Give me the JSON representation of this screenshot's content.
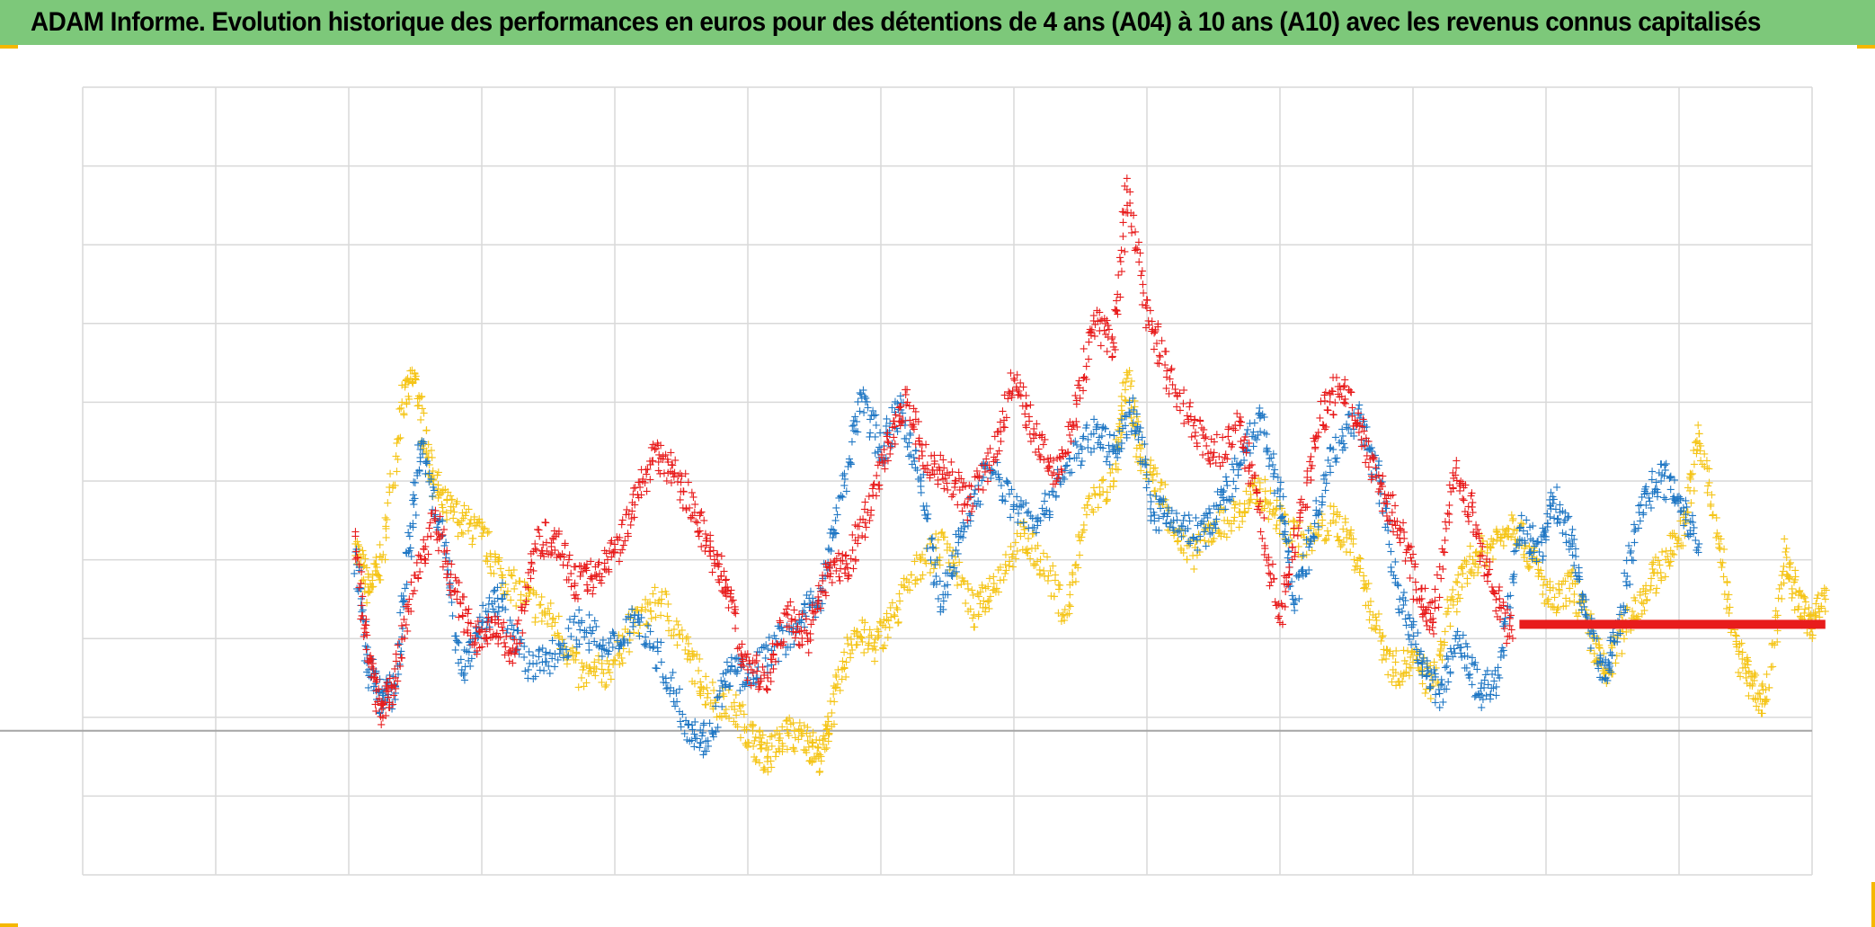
{
  "title": "ADAM Informe. Evolution historique des performances en euros pour des détentions de 4 ans (A04) à 10 ans (A10) avec les revenus connus capitalisés",
  "colors": {
    "title_bg": "#7dc87a",
    "grid": "#d9d9d9",
    "baseline": "#a6a6a6",
    "corner_marks": "#f5b800"
  },
  "chart_data": {
    "type": "scatter",
    "marker": "plus",
    "grid": true,
    "x_divisions": 13,
    "y_divisions": 10,
    "xlim": [
      0,
      13
    ],
    "ylim": [
      -2,
      8
    ],
    "baseline_y": 0,
    "series": [
      {
        "color": "#f5c518",
        "points": [
          [
            2.05,
            2.2
          ],
          [
            2.15,
            1.6
          ],
          [
            2.25,
            2.0
          ],
          [
            2.4,
            4.0
          ],
          [
            2.5,
            4.3
          ],
          [
            2.6,
            3.3
          ],
          [
            2.7,
            2.7
          ],
          [
            2.85,
            2.5
          ],
          [
            3.0,
            2.3
          ],
          [
            3.15,
            1.8
          ],
          [
            3.35,
            1.5
          ],
          [
            3.55,
            1.2
          ],
          [
            3.75,
            0.5
          ],
          [
            3.95,
            0.6
          ],
          [
            4.15,
            1.2
          ],
          [
            4.35,
            1.5
          ],
          [
            4.55,
            0.8
          ],
          [
            4.7,
            0.3
          ],
          [
            4.9,
            0.1
          ],
          [
            5.05,
            -0.3
          ],
          [
            5.15,
            -0.5
          ],
          [
            5.3,
            -0.2
          ],
          [
            5.45,
            -0.3
          ],
          [
            5.55,
            -0.5
          ],
          [
            5.65,
            0.2
          ],
          [
            5.8,
            1.1
          ],
          [
            5.95,
            0.9
          ],
          [
            6.1,
            1.3
          ],
          [
            6.3,
            2.0
          ],
          [
            6.5,
            2.2
          ],
          [
            6.7,
            1.3
          ],
          [
            6.85,
            1.7
          ],
          [
            7.05,
            2.3
          ],
          [
            7.2,
            2.0
          ],
          [
            7.4,
            1.3
          ],
          [
            7.55,
            2.7
          ],
          [
            7.75,
            3.0
          ],
          [
            7.85,
            4.3
          ],
          [
            7.95,
            3.3
          ],
          [
            8.1,
            2.9
          ],
          [
            8.3,
            2.0
          ],
          [
            8.5,
            2.4
          ],
          [
            8.7,
            2.6
          ],
          [
            8.85,
            2.9
          ],
          [
            9.0,
            2.5
          ],
          [
            9.2,
            2.2
          ],
          [
            9.4,
            2.5
          ],
          [
            9.55,
            2.2
          ],
          [
            9.7,
            1.3
          ],
          [
            9.85,
            0.6
          ],
          [
            10.0,
            0.7
          ],
          [
            10.15,
            0.4
          ],
          [
            10.3,
            1.5
          ],
          [
            10.45,
            2.0
          ],
          [
            10.6,
            2.2
          ],
          [
            10.75,
            2.5
          ],
          [
            10.9,
            2.0
          ],
          [
            11.05,
            1.4
          ],
          [
            11.2,
            1.7
          ],
          [
            11.35,
            1.0
          ],
          [
            11.45,
            0.5
          ],
          [
            11.6,
            1.2
          ],
          [
            11.75,
            1.6
          ],
          [
            11.9,
            2.0
          ],
          [
            12.05,
            2.5
          ],
          [
            12.15,
            3.6
          ],
          [
            12.3,
            2.2
          ],
          [
            12.45,
            0.8
          ],
          [
            12.55,
            0.4
          ],
          [
            12.65,
            0.2
          ],
          [
            12.8,
            2.1
          ],
          [
            12.9,
            1.4
          ],
          [
            13.0,
            1.2
          ],
          [
            13.1,
            1.5
          ]
        ]
      },
      {
        "color": "#1f77c4",
        "points": [
          [
            2.05,
            2.1
          ],
          [
            2.15,
            0.6
          ],
          [
            2.25,
            0.2
          ],
          [
            2.35,
            0.4
          ],
          [
            2.45,
            2.1
          ],
          [
            2.55,
            3.5
          ],
          [
            2.7,
            2.3
          ],
          [
            2.85,
            0.6
          ],
          [
            3.0,
            1.2
          ],
          [
            3.15,
            1.5
          ],
          [
            3.35,
            0.6
          ],
          [
            3.55,
            0.8
          ],
          [
            3.75,
            1.2
          ],
          [
            3.95,
            0.8
          ],
          [
            4.15,
            1.3
          ],
          [
            4.35,
            0.7
          ],
          [
            4.55,
            -0.1
          ],
          [
            4.7,
            -0.3
          ],
          [
            4.85,
            0.6
          ],
          [
            5.0,
            0.5
          ],
          [
            5.2,
            0.9
          ],
          [
            5.4,
            1.2
          ],
          [
            5.55,
            1.6
          ],
          [
            5.7,
            2.8
          ],
          [
            5.85,
            4.1
          ],
          [
            6.0,
            3.4
          ],
          [
            6.15,
            3.9
          ],
          [
            6.3,
            3.0
          ],
          [
            6.45,
            1.4
          ],
          [
            6.6,
            2.3
          ],
          [
            6.8,
            3.2
          ],
          [
            7.0,
            2.7
          ],
          [
            7.2,
            2.5
          ],
          [
            7.4,
            3.2
          ],
          [
            7.6,
            3.6
          ],
          [
            7.75,
            3.4
          ],
          [
            7.9,
            3.9
          ],
          [
            8.05,
            2.6
          ],
          [
            8.2,
            2.5
          ],
          [
            8.4,
            2.3
          ],
          [
            8.55,
            2.7
          ],
          [
            8.7,
            3.2
          ],
          [
            8.85,
            3.8
          ],
          [
            9.0,
            2.8
          ],
          [
            9.1,
            1.5
          ],
          [
            9.25,
            2.3
          ],
          [
            9.4,
            3.4
          ],
          [
            9.6,
            3.8
          ],
          [
            9.75,
            3.0
          ],
          [
            9.9,
            1.5
          ],
          [
            10.05,
            0.8
          ],
          [
            10.2,
            0.3
          ],
          [
            10.35,
            1.0
          ],
          [
            10.5,
            0.3
          ],
          [
            10.65,
            0.5
          ],
          [
            10.8,
            2.4
          ],
          [
            10.95,
            2.1
          ],
          [
            11.05,
            2.8
          ],
          [
            11.2,
            2.2
          ],
          [
            11.3,
            1.3
          ],
          [
            11.45,
            0.5
          ],
          [
            11.55,
            1.2
          ],
          [
            11.7,
            2.6
          ],
          [
            11.85,
            3.1
          ],
          [
            12.0,
            2.8
          ],
          [
            12.15,
            2.2
          ]
        ]
      },
      {
        "color": "#e81c1c",
        "points": [
          [
            2.05,
            2.3
          ],
          [
            2.15,
            0.7
          ],
          [
            2.25,
            0.1
          ],
          [
            2.35,
            0.5
          ],
          [
            2.5,
            1.8
          ],
          [
            2.65,
            2.5
          ],
          [
            2.8,
            1.6
          ],
          [
            2.95,
            1.0
          ],
          [
            3.1,
            1.2
          ],
          [
            3.25,
            0.8
          ],
          [
            3.4,
            2.2
          ],
          [
            3.55,
            2.3
          ],
          [
            3.7,
            1.7
          ],
          [
            3.85,
            1.8
          ],
          [
            4.0,
            2.1
          ],
          [
            4.15,
            2.7
          ],
          [
            4.3,
            3.4
          ],
          [
            4.45,
            3.1
          ],
          [
            4.6,
            2.6
          ],
          [
            4.75,
            2.0
          ],
          [
            4.85,
            1.6
          ],
          [
            5.0,
            0.6
          ],
          [
            5.15,
            0.5
          ],
          [
            5.3,
            1.3
          ],
          [
            5.45,
            1.0
          ],
          [
            5.6,
            1.8
          ],
          [
            5.75,
            1.9
          ],
          [
            5.9,
            2.6
          ],
          [
            6.05,
            3.5
          ],
          [
            6.2,
            4.0
          ],
          [
            6.35,
            3.2
          ],
          [
            6.5,
            3.1
          ],
          [
            6.65,
            2.7
          ],
          [
            6.85,
            3.3
          ],
          [
            7.0,
            4.3
          ],
          [
            7.15,
            3.6
          ],
          [
            7.3,
            3.1
          ],
          [
            7.45,
            3.7
          ],
          [
            7.6,
            5.1
          ],
          [
            7.75,
            4.7
          ],
          [
            7.85,
            6.7
          ],
          [
            8.0,
            5.2
          ],
          [
            8.15,
            4.4
          ],
          [
            8.35,
            3.7
          ],
          [
            8.5,
            3.3
          ],
          [
            8.7,
            3.7
          ],
          [
            8.85,
            2.6
          ],
          [
            9.0,
            1.2
          ],
          [
            9.15,
            2.5
          ],
          [
            9.3,
            3.8
          ],
          [
            9.45,
            4.2
          ],
          [
            9.6,
            3.7
          ],
          [
            9.75,
            2.9
          ],
          [
            9.9,
            2.4
          ],
          [
            10.05,
            1.5
          ],
          [
            10.15,
            1.2
          ],
          [
            10.3,
            3.1
          ],
          [
            10.45,
            2.6
          ],
          [
            10.6,
            1.6
          ],
          [
            10.75,
            1.0
          ]
        ]
      },
      {
        "color": "#e81c1c",
        "line": true,
        "x": [
          10.8,
          13.1
        ],
        "y": [
          1.18,
          1.18
        ]
      }
    ]
  }
}
